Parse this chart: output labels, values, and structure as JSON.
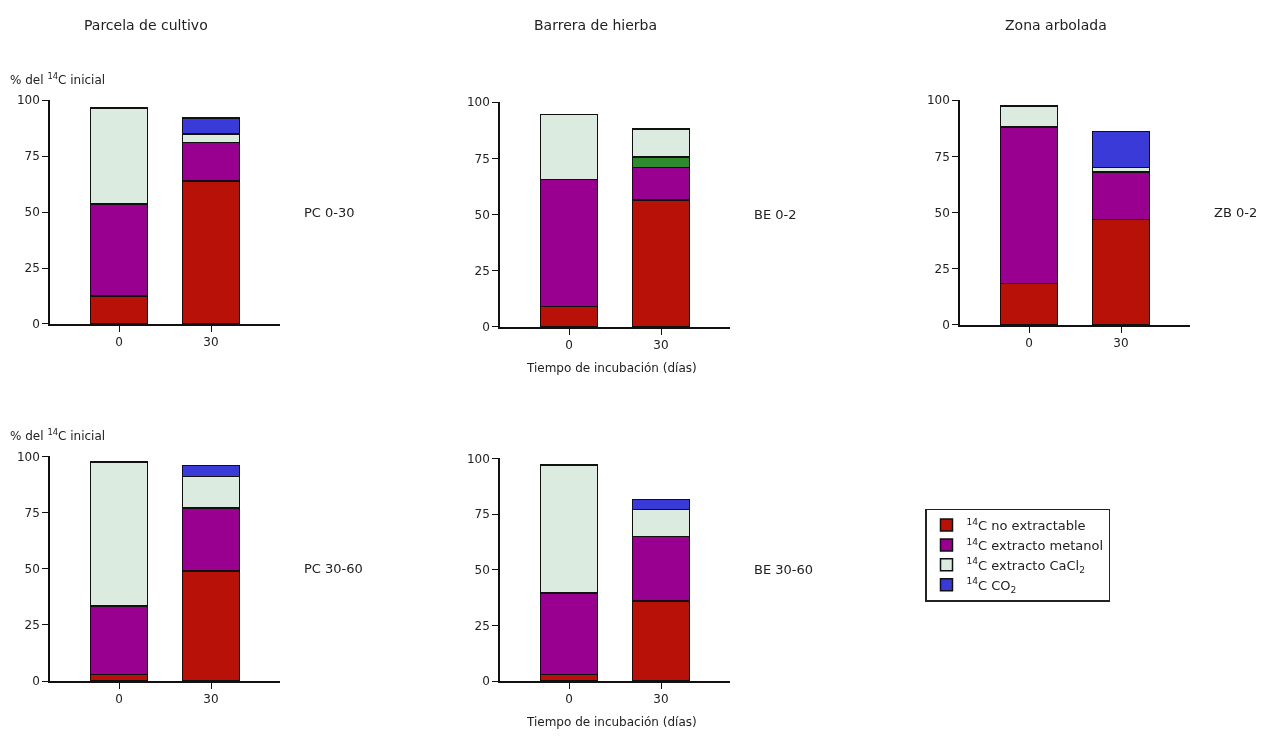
{
  "chart_data": [
    {
      "type": "bar",
      "title": "Parcela de cultivo",
      "ylabel": "% del $^{14}$C inicial",
      "categories": [
        "0",
        "30"
      ],
      "stacked": true,
      "ylim": [
        0,
        100
      ],
      "yticks": [
        0,
        25,
        50,
        75,
        100
      ],
      "legend": false,
      "annotations": [
        "PC 0-30"
      ],
      "series": [
        {
          "color": "#b81208",
          "values": [
            12.5,
            64
          ]
        },
        {
          "color": "#9a0090",
          "values": [
            41,
            17
          ]
        },
        {
          "color": "#dcebe0",
          "values": [
            43,
            4
          ]
        },
        {
          "color": "#3a3ad8",
          "values": [
            null,
            7
          ]
        }
      ]
    },
    {
      "type": "bar",
      "title": "Barrera de hierba",
      "xlabel": "Tiempo de incubación (días)",
      "categories": [
        "0",
        "30"
      ],
      "stacked": true,
      "ylim": [
        0,
        100
      ],
      "yticks": [
        0,
        25,
        50,
        75,
        100
      ],
      "legend": false,
      "annotations": [
        "BE 0-2"
      ],
      "series": [
        {
          "color": "#b81208",
          "values": [
            9,
            56.5
          ]
        },
        {
          "color": "#9a0090",
          "values": [
            56.5,
            14.5
          ]
        },
        {
          "color": "#2e8b2e",
          "values": [
            null,
            4.5
          ]
        },
        {
          "color": "#dcebe0",
          "values": [
            29,
            12.5
          ]
        }
      ]
    },
    {
      "type": "bar",
      "title": "Zona arbolada",
      "categories": [
        "0",
        "30"
      ],
      "stacked": true,
      "ylim": [
        0,
        100
      ],
      "yticks": [
        0,
        25,
        50,
        75,
        100
      ],
      "legend": false,
      "annotations": [
        "ZB 0-2"
      ],
      "series": [
        {
          "color": "#b81208",
          "values": [
            18.5,
            47
          ]
        },
        {
          "color": "#9a0090",
          "values": [
            69.5,
            21
          ]
        },
        {
          "color": "#dcebe0",
          "values": [
            9.5,
            2
          ]
        },
        {
          "color": "#3a3ad8",
          "values": [
            null,
            16
          ]
        }
      ]
    },
    {
      "type": "bar",
      "ylabel": "% del $^{14}$C inicial",
      "categories": [
        "0",
        "30"
      ],
      "stacked": true,
      "ylim": [
        0,
        100
      ],
      "yticks": [
        0,
        25,
        50,
        75,
        100
      ],
      "legend": false,
      "annotations": [
        "PC 30-60"
      ],
      "series": [
        {
          "color": "#b81208",
          "values": [
            3,
            49
          ]
        },
        {
          "color": "#9a0090",
          "values": [
            30.5,
            28
          ]
        },
        {
          "color": "#dcebe0",
          "values": [
            64,
            14
          ]
        },
        {
          "color": "#3a3ad8",
          "values": [
            null,
            5
          ]
        }
      ]
    },
    {
      "type": "bar",
      "xlabel": "Tiempo de incubación (días)",
      "categories": [
        "0",
        "30"
      ],
      "stacked": true,
      "ylim": [
        0,
        100
      ],
      "yticks": [
        0,
        25,
        50,
        75,
        100
      ],
      "legend": "right",
      "annotations": [
        "BE 30-60"
      ],
      "series": [
        {
          "name": "$^{14}$C no extractable",
          "color": "#b81208",
          "values": [
            3,
            36
          ]
        },
        {
          "name": "$^{14}$C extracto metanol",
          "color": "#9a0090",
          "values": [
            36.5,
            29
          ]
        },
        {
          "name": "$^{14}$C extracto CaCl$_{2}$",
          "color": "#dcebe0",
          "values": [
            57.5,
            12
          ]
        },
        {
          "name": "$^{14}$C CO$_{2}$",
          "color": "#3a3ad8",
          "values": [
            null,
            4.5
          ]
        }
      ]
    }
  ]
}
